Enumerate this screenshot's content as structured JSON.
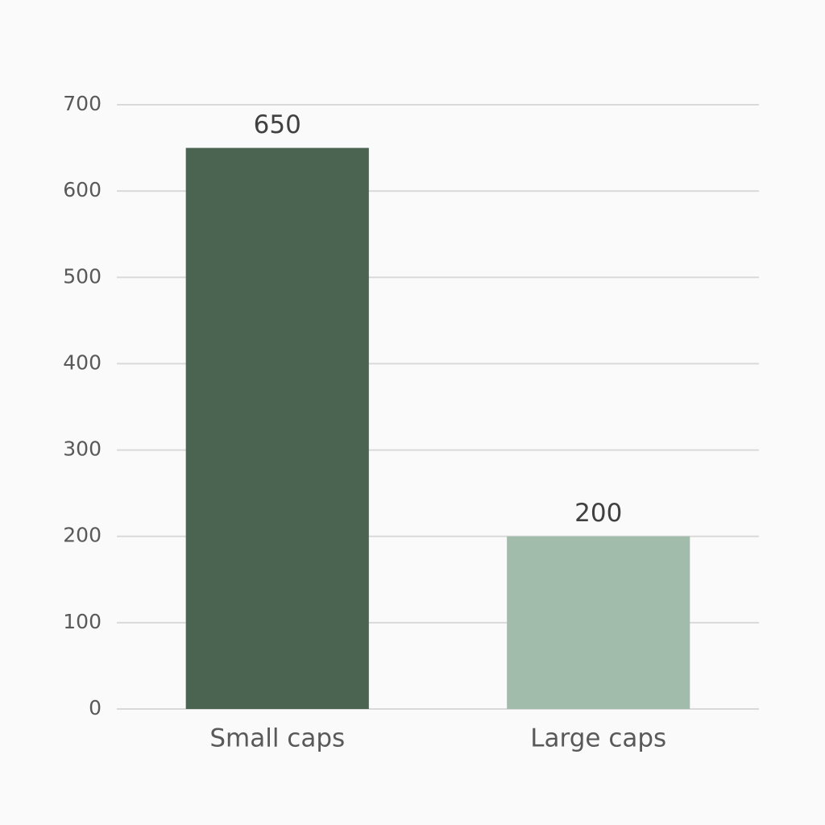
{
  "chart_data": {
    "type": "bar",
    "categories": [
      "Small caps",
      "Large caps"
    ],
    "values": [
      650,
      200
    ],
    "colors": [
      "#4b6452",
      "#a1bcab"
    ],
    "ylim": [
      0,
      700
    ],
    "yticks": [
      0,
      100,
      200,
      300,
      400,
      500,
      600,
      700
    ],
    "grid": true
  }
}
